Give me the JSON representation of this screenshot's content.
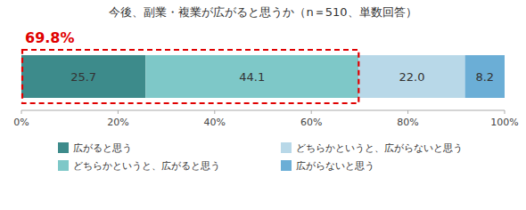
{
  "chart_data": {
    "type": "bar",
    "orientation": "horizontal",
    "stacked": true,
    "data_labels": true,
    "title": "今後、副業・複業が広がると思うか（n＝510、単数回答）",
    "categories": [
      null
    ],
    "series": [
      {
        "name": "広がると思う",
        "color": "#3d8b8b",
        "values": [
          25.7
        ],
        "value_labels": [
          "25.7"
        ]
      },
      {
        "name": "どちらかというと、広がると思う",
        "color": "#7ec8c8",
        "values": [
          44.1
        ],
        "value_labels": [
          "44.1"
        ]
      },
      {
        "name": "どちらかというと、広がらないと思う",
        "color": "#b8d8e8",
        "values": [
          22.0
        ],
        "value_labels": [
          "22.0"
        ]
      },
      {
        "name": "広がらないと思う",
        "color": "#6baed6",
        "values": [
          8.2
        ],
        "value_labels": [
          "8.2"
        ]
      }
    ],
    "xlim": [
      0,
      100
    ],
    "xticks": [
      {
        "value": 0,
        "label": "0%"
      },
      {
        "value": 20,
        "label": "20%"
      },
      {
        "value": 40,
        "label": "40%"
      },
      {
        "value": 60,
        "label": "60%"
      },
      {
        "value": 80,
        "label": "80%"
      },
      {
        "value": 100,
        "label": "100%"
      }
    ],
    "annotations": [
      {
        "text": "69.8%",
        "range": [
          0,
          69.8
        ],
        "color": "#e00000"
      }
    ],
    "legend": "bottom",
    "grid": false
  }
}
